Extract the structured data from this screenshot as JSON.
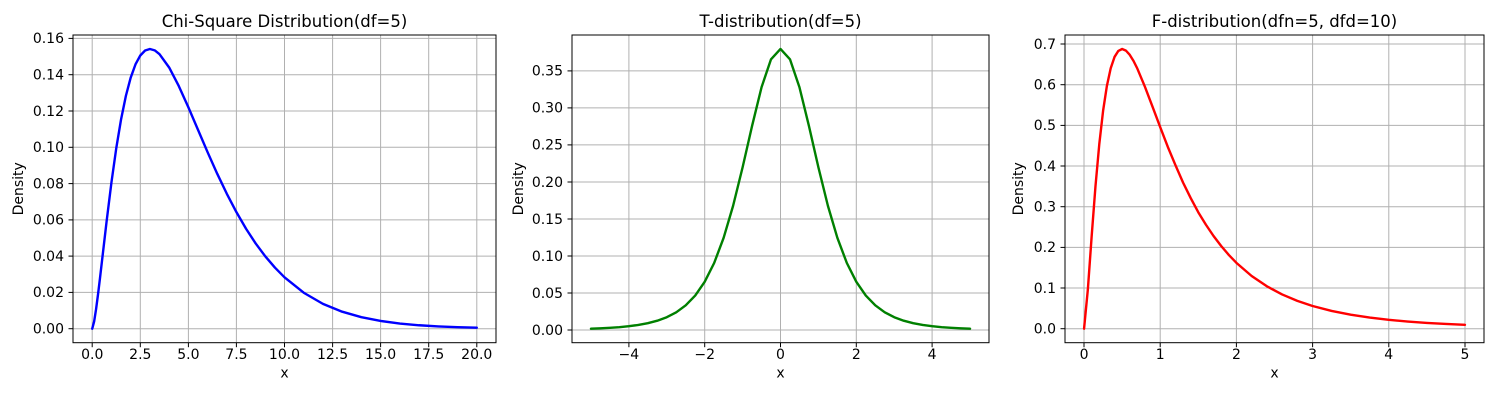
{
  "figure": {
    "background": "#ffffff",
    "grid_color": "#b0b0b0",
    "spine_color": "#000000",
    "text_color": "#000000",
    "grid_on": true
  },
  "chart_data": [
    {
      "type": "line",
      "id": "chi-square-distribution",
      "title": "Chi-Square Distribution(df=5)",
      "xlabel": "x",
      "ylabel": "Density",
      "grid": true,
      "legend": false,
      "xlim": [
        -1,
        21
      ],
      "ylim": [
        -0.00771,
        0.16189
      ],
      "xticks": {
        "values": [
          0,
          2.5,
          5,
          7.5,
          10,
          12.5,
          15,
          17.5,
          20
        ],
        "labels": [
          "0.0",
          "2.5",
          "5.0",
          "7.5",
          "10.0",
          "12.5",
          "15.0",
          "17.5",
          "20.0"
        ]
      },
      "yticks": {
        "values": [
          0,
          0.02,
          0.04,
          0.06,
          0.08,
          0.1,
          0.12,
          0.14,
          0.16
        ],
        "labels": [
          "0.00",
          "0.02",
          "0.04",
          "0.06",
          "0.08",
          "0.10",
          "0.12",
          "0.14",
          "0.16"
        ]
      },
      "series": [
        {
          "name": "chi-square-pdf",
          "color": "#0000ff",
          "x": [
            0,
            0.1,
            0.2,
            0.3,
            0.4,
            0.5,
            0.75,
            1,
            1.25,
            1.5,
            1.75,
            2,
            2.25,
            2.5,
            2.75,
            3,
            3.25,
            3.5,
            4,
            4.5,
            5,
            5.5,
            6,
            6.5,
            7,
            7.5,
            8,
            8.5,
            9,
            9.5,
            10,
            11,
            12,
            13,
            14,
            15,
            16,
            17,
            18,
            19,
            20
          ],
          "y": [
            0,
            0.004,
            0.01076,
            0.01881,
            0.02754,
            0.03662,
            0.05937,
            0.08066,
            0.09948,
            0.1154,
            0.12834,
            0.13837,
            0.14571,
            0.1506,
            0.15334,
            0.15418,
            0.15343,
            0.15131,
            0.14398,
            0.1338,
            0.12204,
            0.10966,
            0.0973,
            0.08544,
            0.07437,
            0.06424,
            0.05511,
            0.04701,
            0.03989,
            0.03369,
            0.02833,
            0.01983,
            0.0137,
            0.00937,
            0.00635,
            0.00427,
            0.00286,
            0.0019,
            0.00125,
            0.00082,
            0.00054
          ]
        }
      ]
    },
    {
      "type": "line",
      "id": "t-distribution",
      "title": "T-distribution(df=5)",
      "xlabel": "x",
      "ylabel": "Density",
      "grid": true,
      "legend": false,
      "xlim": [
        -5.5,
        5.5
      ],
      "ylim": [
        -0.01713,
        0.3985
      ],
      "xticks": {
        "values": [
          -4,
          -2,
          0,
          2,
          4
        ],
        "labels": [
          "−4",
          "−2",
          "0",
          "2",
          "4"
        ]
      },
      "yticks": {
        "values": [
          0,
          0.05,
          0.1,
          0.15,
          0.2,
          0.25,
          0.3,
          0.35
        ],
        "labels": [
          "0.00",
          "0.05",
          "0.10",
          "0.15",
          "0.20",
          "0.25",
          "0.30",
          "0.35"
        ]
      },
      "series": [
        {
          "name": "t-distribution-pdf",
          "color": "#008000",
          "x": [
            -5,
            -4.75,
            -4.5,
            -4.25,
            -4,
            -3.75,
            -3.5,
            -3.25,
            -3,
            -2.75,
            -2.5,
            -2.25,
            -2,
            -1.75,
            -1.5,
            -1.25,
            -1,
            -0.75,
            -0.5,
            -0.25,
            0,
            0.25,
            0.5,
            0.75,
            1,
            1.25,
            1.5,
            1.75,
            2,
            2.25,
            2.5,
            2.75,
            3,
            3.25,
            3.5,
            3.75,
            4,
            4.25,
            4.5,
            4.75,
            5
          ],
          "y": [
            0.00176,
            0.00227,
            0.00295,
            0.00387,
            0.00512,
            0.00685,
            0.00924,
            0.01259,
            0.01729,
            0.02394,
            0.03333,
            0.04657,
            0.06509,
            0.09054,
            0.12452,
            0.16787,
            0.21967,
            0.27566,
            0.32793,
            0.36572,
            0.37961,
            0.36572,
            0.32793,
            0.27566,
            0.21967,
            0.16787,
            0.12452,
            0.09054,
            0.06509,
            0.04657,
            0.03333,
            0.02394,
            0.01729,
            0.01259,
            0.00924,
            0.00685,
            0.00512,
            0.00387,
            0.00295,
            0.00227,
            0.00176
          ]
        }
      ]
    },
    {
      "type": "line",
      "id": "f-distribution",
      "title": "F-distribution(dfn=5, dfd=10)",
      "xlabel": "x",
      "ylabel": "Density",
      "grid": true,
      "legend": false,
      "xlim": [
        -0.25,
        5.25
      ],
      "ylim": [
        -0.03439,
        0.72219
      ],
      "xticks": {
        "values": [
          0,
          1,
          2,
          3,
          4,
          5
        ],
        "labels": [
          "0",
          "1",
          "2",
          "3",
          "4",
          "5"
        ]
      },
      "yticks": {
        "values": [
          0,
          0.1,
          0.2,
          0.3,
          0.4,
          0.5,
          0.6,
          0.7
        ],
        "labels": [
          "0.0",
          "0.1",
          "0.2",
          "0.3",
          "0.4",
          "0.5",
          "0.6",
          "0.7"
        ]
      },
      "series": [
        {
          "name": "f-distribution-pdf",
          "color": "#ff0000",
          "x": [
            0,
            0.05,
            0.1,
            0.15,
            0.2,
            0.25,
            0.3,
            0.35,
            0.4,
            0.45,
            0.5,
            0.55,
            0.6,
            0.65,
            0.7,
            0.8,
            0.9,
            1,
            1.1,
            1.2,
            1.3,
            1.4,
            1.5,
            1.6,
            1.7,
            1.8,
            1.9,
            2,
            2.2,
            2.4,
            2.6,
            2.8,
            3,
            3.25,
            3.5,
            3.75,
            4,
            4.25,
            4.5,
            4.75,
            5
          ],
          "y": [
            0,
            0.09632,
            0.2274,
            0.35018,
            0.45372,
            0.53573,
            0.59722,
            0.64047,
            0.66822,
            0.6831,
            0.6878,
            0.68376,
            0.67337,
            0.65828,
            0.63946,
            0.59449,
            0.5454,
            0.49551,
            0.44682,
            0.40208,
            0.35923,
            0.32117,
            0.28613,
            0.2556,
            0.228,
            0.2033,
            0.18146,
            0.16194,
            0.12967,
            0.10428,
            0.08424,
            0.0684,
            0.05587,
            0.04362,
            0.03442,
            0.02733,
            0.0219,
            0.01762,
            0.01433,
            0.0117,
            0.00962
          ]
        }
      ]
    }
  ]
}
